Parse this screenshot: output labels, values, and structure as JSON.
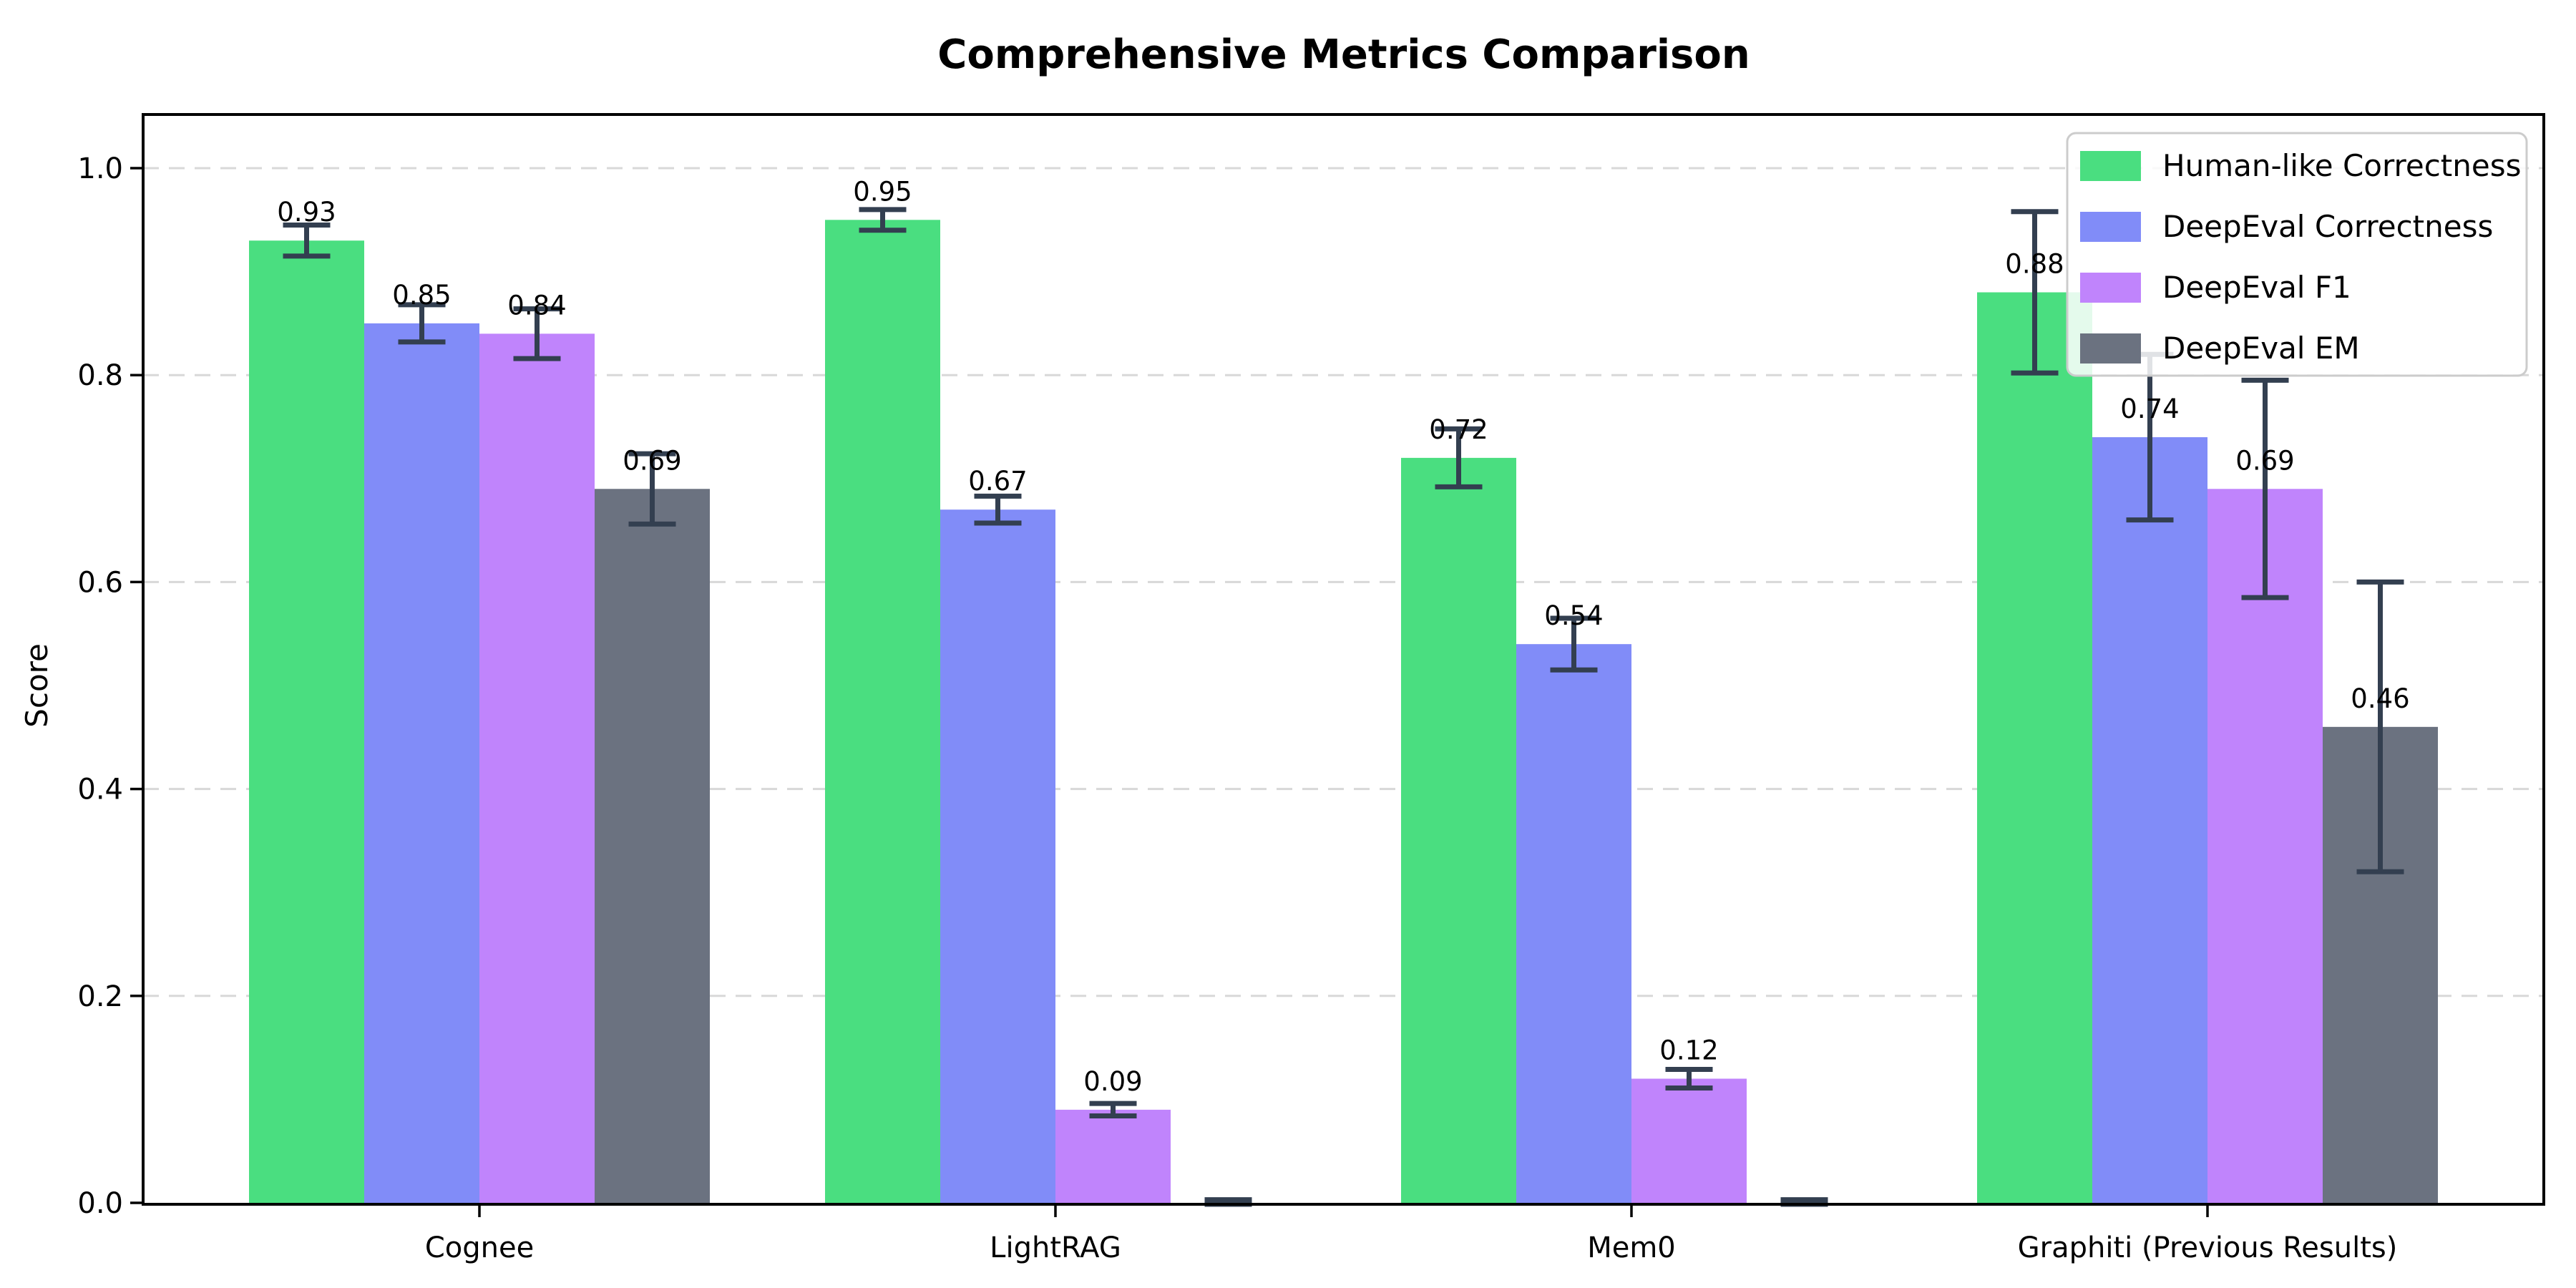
{
  "title": "Comprehensive Metrics Comparison",
  "chart_data": {
    "type": "bar",
    "title": "Comprehensive Metrics Comparison",
    "xlabel": "",
    "ylabel": "Score",
    "categories": [
      "Cognee",
      "LightRAG",
      "Mem0",
      "Graphiti (Previous Results)"
    ],
    "series": [
      {
        "name": "Human-like Correctness",
        "color": "#4ade80",
        "values": [
          0.93,
          0.95,
          0.72,
          0.88
        ],
        "errors": [
          0.015,
          0.01,
          0.028,
          0.078
        ],
        "labels": [
          "0.93",
          "0.95",
          "0.72",
          "0.88"
        ]
      },
      {
        "name": "DeepEval Correctness",
        "color": "#818cf8",
        "values": [
          0.85,
          0.67,
          0.54,
          0.74
        ],
        "errors": [
          0.018,
          0.013,
          0.025,
          0.08
        ],
        "labels": [
          "0.85",
          "0.67",
          "0.54",
          "0.74"
        ]
      },
      {
        "name": "DeepEval F1",
        "color": "#c084fc",
        "values": [
          0.84,
          0.09,
          0.12,
          0.69
        ],
        "errors": [
          0.024,
          0.006,
          0.009,
          0.105
        ],
        "labels": [
          "0.84",
          "0.09",
          "0.12",
          "0.69"
        ]
      },
      {
        "name": "DeepEval EM",
        "color": "#6b7280",
        "values": [
          0.69,
          0.0,
          0.0,
          0.46
        ],
        "errors": [
          0.034,
          0.003,
          0.003,
          0.14
        ],
        "labels": [
          "0.69",
          null,
          null,
          "0.46"
        ]
      }
    ],
    "ylim": [
      0,
      1.051
    ],
    "yticks": [
      0.0,
      0.2,
      0.4,
      0.6,
      0.8,
      1.0
    ],
    "ytick_labels": [
      "0.0",
      "0.2",
      "0.4",
      "0.6",
      "0.8",
      "1.0"
    ],
    "grid": "horizontal-dashed",
    "grid_color": "#d8d8d8",
    "legend_position": "upper-right",
    "legend_border_color": "#cccccc",
    "error_bar_color": "#333f50",
    "axis_color": "#000000",
    "text_color": "#000000",
    "background": "#ffffff"
  }
}
